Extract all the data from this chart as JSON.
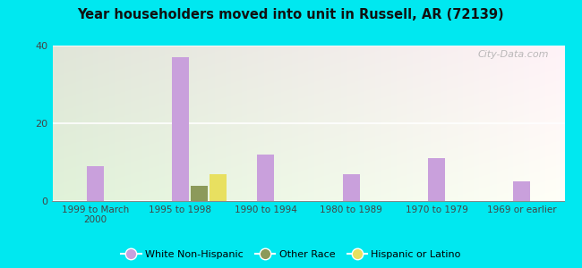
{
  "title": "Year householders moved into unit in Russell, AR (72139)",
  "categories": [
    "1999 to March\n2000",
    "1995 to 1998",
    "1990 to 1994",
    "1980 to 1989",
    "1970 to 1979",
    "1969 or earlier"
  ],
  "white_non_hispanic": [
    9,
    37,
    12,
    7,
    11,
    5
  ],
  "other_race": [
    0,
    4,
    0,
    0,
    0,
    0
  ],
  "hispanic_or_latino": [
    0,
    7,
    0,
    0,
    0,
    0
  ],
  "white_color": "#c9a0dc",
  "other_color": "#8c9a5a",
  "hispanic_color": "#e8e060",
  "ylim": [
    0,
    40
  ],
  "yticks": [
    0,
    20,
    40
  ],
  "bar_width": 0.2,
  "background_outer": "#00e8f0",
  "watermark": "City-Data.com",
  "legend_labels": [
    "White Non-Hispanic",
    "Other Race",
    "Hispanic or Latino"
  ]
}
